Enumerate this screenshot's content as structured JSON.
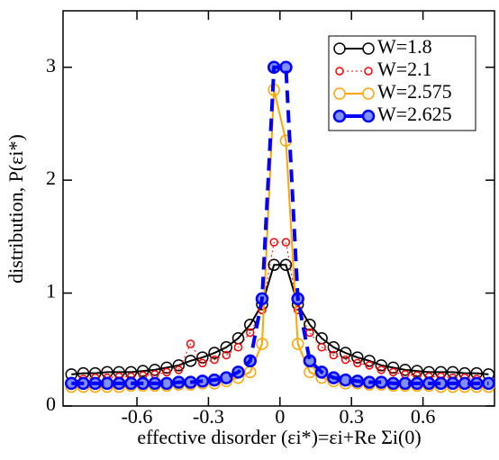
{
  "chart_data": {
    "type": "line",
    "x_label": "effective disorder (εi*)=εi+Re Σi(0)",
    "y_label": "distribution, P(εi*)",
    "x": [
      -0.875,
      -0.825,
      -0.775,
      -0.725,
      -0.675,
      -0.625,
      -0.575,
      -0.525,
      -0.475,
      -0.425,
      -0.375,
      -0.325,
      -0.275,
      -0.225,
      -0.175,
      -0.125,
      -0.075,
      -0.025,
      0.025,
      0.075,
      0.125,
      0.175,
      0.225,
      0.275,
      0.325,
      0.375,
      0.425,
      0.475,
      0.525,
      0.575,
      0.625,
      0.675,
      0.725,
      0.775,
      0.825,
      0.875
    ],
    "series": [
      {
        "name": "W=1.8",
        "color": "#000000",
        "line": "solid",
        "filled": false,
        "radius": 6,
        "values": [
          0.28,
          0.29,
          0.29,
          0.3,
          0.3,
          0.3,
          0.31,
          0.32,
          0.34,
          0.36,
          0.4,
          0.43,
          0.47,
          0.52,
          0.6,
          0.72,
          0.9,
          1.25,
          1.25,
          0.9,
          0.72,
          0.6,
          0.52,
          0.47,
          0.43,
          0.4,
          0.36,
          0.34,
          0.32,
          0.31,
          0.3,
          0.3,
          0.3,
          0.29,
          0.29,
          0.28
        ]
      },
      {
        "name": "W=2.1",
        "color": "#ff0000",
        "line": "dotted",
        "filled": false,
        "radius": 4,
        "values": [
          0.22,
          0.24,
          0.25,
          0.25,
          0.26,
          0.26,
          0.27,
          0.28,
          0.3,
          0.32,
          0.55,
          0.38,
          0.41,
          0.45,
          0.52,
          0.65,
          0.85,
          1.45,
          1.45,
          0.85,
          0.65,
          0.52,
          0.45,
          0.41,
          0.38,
          0.36,
          0.32,
          0.3,
          0.28,
          0.27,
          0.26,
          0.26,
          0.25,
          0.25,
          0.24,
          0.22
        ]
      },
      {
        "name": "W=2.575",
        "color": "#ffa500",
        "line": "solid",
        "filled": false,
        "radius": 6,
        "values": [
          0.17,
          0.17,
          0.17,
          0.17,
          0.17,
          0.18,
          0.18,
          0.18,
          0.18,
          0.19,
          0.19,
          0.2,
          0.2,
          0.22,
          0.25,
          0.3,
          0.55,
          2.8,
          2.35,
          0.55,
          0.3,
          0.25,
          0.22,
          0.2,
          0.2,
          0.19,
          0.19,
          0.18,
          0.18,
          0.18,
          0.18,
          0.17,
          0.17,
          0.17,
          0.17,
          0.17
        ]
      },
      {
        "name": "W=2.625",
        "color": "#0000ff",
        "line": "dashed",
        "filled": true,
        "radius": 6,
        "values": [
          0.2,
          0.2,
          0.2,
          0.2,
          0.2,
          0.2,
          0.2,
          0.2,
          0.2,
          0.21,
          0.21,
          0.22,
          0.23,
          0.25,
          0.3,
          0.4,
          0.95,
          3.0,
          3.0,
          0.95,
          0.4,
          0.3,
          0.25,
          0.23,
          0.22,
          0.21,
          0.21,
          0.2,
          0.2,
          0.2,
          0.2,
          0.2,
          0.2,
          0.2,
          0.2,
          0.2
        ]
      }
    ],
    "xlim": [
      -0.91,
      0.9
    ],
    "ylim": [
      0,
      3.5
    ],
    "xticks": [
      -0.6,
      -0.3,
      0,
      0.3,
      0.6
    ],
    "yticks": [
      0,
      1,
      2,
      3
    ],
    "legend": "upper right"
  }
}
